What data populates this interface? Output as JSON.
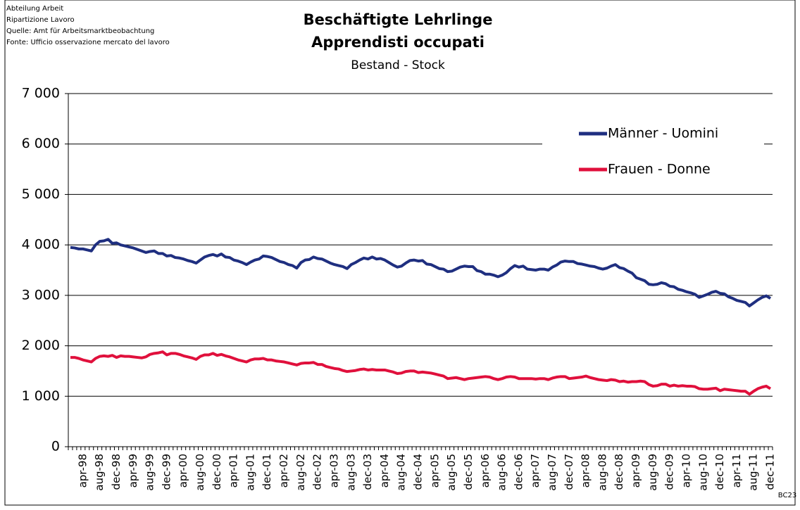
{
  "chart_data": {
    "type": "line",
    "source": [
      "Abteilung Arbeit",
      "Ripartizione Lavoro",
      "Quelle: Amt für Arbeitsmarktbeobachtung",
      "Fonte: Ufficio osservazione mercato del lavoro"
    ],
    "title": [
      "Beschäftigte Lehrlinge",
      "Apprendisti occupati"
    ],
    "subtitle": "Bestand - Stock",
    "code": "BC23",
    "categories": [
      null,
      null,
      null,
      "apr-98",
      null,
      null,
      null,
      "aug-98",
      null,
      null,
      null,
      "dec-98",
      null,
      null,
      null,
      "apr-99",
      null,
      null,
      null,
      "aug-99",
      null,
      null,
      null,
      "dec-99",
      null,
      null,
      null,
      "apr-00",
      null,
      null,
      null,
      "aug-00",
      null,
      null,
      null,
      "dec-00",
      null,
      null,
      null,
      "apr-01",
      null,
      null,
      null,
      "aug-01",
      null,
      null,
      null,
      "dec-01",
      null,
      null,
      null,
      "apr-02",
      null,
      null,
      null,
      "aug-02",
      null,
      null,
      null,
      "dec-02",
      null,
      null,
      null,
      "apr-03",
      null,
      null,
      null,
      "aug-03",
      null,
      null,
      null,
      "dec-03",
      null,
      null,
      null,
      "apr-04",
      null,
      null,
      null,
      "aug-04",
      null,
      null,
      null,
      "dec-04",
      null,
      null,
      null,
      "apr-05",
      null,
      null,
      null,
      "aug-05",
      null,
      null,
      null,
      "dec-05",
      null,
      null,
      null,
      "apr-06",
      null,
      null,
      null,
      "aug-06",
      null,
      null,
      null,
      "dec-06",
      null,
      null,
      null,
      "apr-07",
      null,
      null,
      null,
      "aug-07",
      null,
      null,
      null,
      "dec-07",
      null,
      null,
      null,
      "apr-08",
      null,
      null,
      null,
      "aug-08",
      null,
      null,
      null,
      "dec-08",
      null,
      null,
      null,
      "apr-09",
      null,
      null,
      null,
      "aug-09",
      null,
      null,
      null,
      "dec-09",
      null,
      null,
      null,
      "apr-10",
      null,
      null,
      null,
      "aug-10",
      null,
      null,
      null,
      "dec-10",
      null,
      null,
      null,
      "apr-11",
      null,
      null,
      null,
      "aug-11",
      null,
      null,
      null,
      "dec-11"
    ],
    "series": [
      {
        "name": "Männer - Uomini",
        "color": "#1f2f80",
        "values": [
          3950,
          3940,
          3920,
          3920,
          3900,
          3880,
          4000,
          4070,
          4080,
          4110,
          4030,
          4040,
          4000,
          3980,
          3960,
          3940,
          3910,
          3880,
          3850,
          3870,
          3880,
          3830,
          3830,
          3780,
          3790,
          3750,
          3740,
          3720,
          3690,
          3670,
          3640,
          3700,
          3760,
          3790,
          3810,
          3780,
          3820,
          3760,
          3750,
          3700,
          3680,
          3650,
          3610,
          3660,
          3700,
          3720,
          3780,
          3770,
          3750,
          3710,
          3670,
          3650,
          3610,
          3590,
          3540,
          3650,
          3700,
          3710,
          3760,
          3730,
          3720,
          3680,
          3640,
          3610,
          3590,
          3570,
          3530,
          3610,
          3650,
          3700,
          3740,
          3720,
          3760,
          3720,
          3730,
          3700,
          3650,
          3600,
          3560,
          3580,
          3640,
          3690,
          3700,
          3680,
          3690,
          3620,
          3610,
          3570,
          3530,
          3520,
          3470,
          3480,
          3520,
          3560,
          3580,
          3570,
          3570,
          3490,
          3470,
          3420,
          3420,
          3400,
          3370,
          3400,
          3450,
          3530,
          3590,
          3560,
          3580,
          3520,
          3510,
          3500,
          3520,
          3520,
          3500,
          3560,
          3600,
          3660,
          3680,
          3670,
          3670,
          3630,
          3620,
          3600,
          3580,
          3570,
          3540,
          3520,
          3540,
          3580,
          3610,
          3550,
          3530,
          3480,
          3440,
          3350,
          3320,
          3290,
          3220,
          3210,
          3220,
          3250,
          3230,
          3180,
          3170,
          3120,
          3100,
          3070,
          3050,
          3020,
          2960,
          2990,
          3020,
          3060,
          3080,
          3040,
          3030,
          2970,
          2940,
          2900,
          2880,
          2860,
          2790,
          2850,
          2910,
          2960,
          2990,
          2940
        ]
      },
      {
        "name": "Frauen - Donne",
        "color": "#e0103c",
        "values": [
          1770,
          1770,
          1750,
          1720,
          1700,
          1680,
          1750,
          1790,
          1800,
          1790,
          1810,
          1770,
          1800,
          1790,
          1790,
          1780,
          1770,
          1760,
          1780,
          1830,
          1850,
          1860,
          1880,
          1820,
          1850,
          1850,
          1830,
          1800,
          1780,
          1760,
          1730,
          1790,
          1820,
          1820,
          1850,
          1810,
          1830,
          1800,
          1780,
          1750,
          1720,
          1700,
          1680,
          1720,
          1740,
          1740,
          1750,
          1720,
          1720,
          1700,
          1690,
          1680,
          1660,
          1640,
          1620,
          1650,
          1660,
          1660,
          1670,
          1630,
          1630,
          1590,
          1570,
          1550,
          1540,
          1510,
          1490,
          1500,
          1510,
          1530,
          1540,
          1520,
          1530,
          1520,
          1520,
          1520,
          1500,
          1480,
          1450,
          1460,
          1490,
          1500,
          1500,
          1470,
          1480,
          1470,
          1460,
          1440,
          1420,
          1400,
          1350,
          1360,
          1370,
          1350,
          1330,
          1350,
          1360,
          1370,
          1380,
          1390,
          1380,
          1350,
          1330,
          1350,
          1380,
          1390,
          1380,
          1350,
          1350,
          1350,
          1350,
          1340,
          1350,
          1350,
          1330,
          1360,
          1380,
          1390,
          1390,
          1350,
          1360,
          1370,
          1380,
          1400,
          1370,
          1350,
          1330,
          1320,
          1310,
          1330,
          1320,
          1290,
          1300,
          1280,
          1290,
          1290,
          1300,
          1290,
          1230,
          1200,
          1210,
          1240,
          1240,
          1200,
          1220,
          1200,
          1210,
          1200,
          1200,
          1190,
          1150,
          1140,
          1140,
          1150,
          1160,
          1110,
          1140,
          1130,
          1120,
          1110,
          1100,
          1100,
          1040,
          1100,
          1150,
          1180,
          1200,
          1150
        ]
      }
    ],
    "ylim": [
      0,
      7000
    ],
    "yticks": [
      0,
      {
        "value": 1000,
        "label": "1 000"
      },
      {
        "value": 2000,
        "label": "2 000"
      },
      {
        "value": 3000,
        "label": "3 000"
      },
      {
        "value": 4000,
        "label": "4 000"
      },
      {
        "value": 5000,
        "label": "5 000"
      },
      {
        "value": 6000,
        "label": "6 000"
      },
      {
        "value": 7000,
        "label": "7 000"
      }
    ],
    "grid": true
  }
}
